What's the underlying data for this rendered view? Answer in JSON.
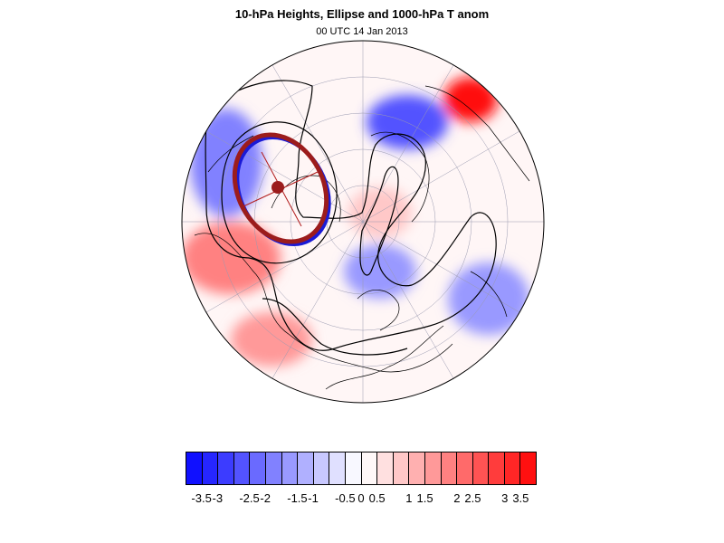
{
  "figure": {
    "title": "10-hPa Heights, Ellipse and 1000-hPa T anom",
    "subtitle": "00 UTC 14 Jan 2013"
  },
  "map": {
    "projection": "polar-stereographic-north",
    "ocean_color": "#ffffff",
    "coastline_color": "#000000",
    "contour_color": "#000000",
    "ellipse_color": "#9c1c1c",
    "ellipse_edge_highlight": "#1a1ad6",
    "ellipse_axis_color": "#b11d1d",
    "anomaly_patches": [
      {
        "name": "north-atlantic-warm",
        "value": 2.0
      },
      {
        "name": "east-asia-warm",
        "value": 1.5
      },
      {
        "name": "north-pacific-warm",
        "value": 3.5
      },
      {
        "name": "arctic-basin-warm",
        "value": 0.8
      },
      {
        "name": "siberia-cold",
        "value": -2.0
      },
      {
        "name": "canada-cold",
        "value": -2.5
      },
      {
        "name": "north-america-cold",
        "value": -1.5
      },
      {
        "name": "central-asia-cold",
        "value": -1.5
      }
    ]
  },
  "colorbar": {
    "colors": [
      "#1010ff",
      "#2626ff",
      "#3c3cff",
      "#5353ff",
      "#6a6aff",
      "#8181ff",
      "#9999ff",
      "#b0b0ff",
      "#c8c8ff",
      "#e0e0ff",
      "#f8f8ff",
      "#fff8f8",
      "#ffe0e0",
      "#ffc8c8",
      "#ffb0b0",
      "#ff9999",
      "#ff8181",
      "#ff6a6a",
      "#ff5353",
      "#ff3c3c",
      "#ff2626",
      "#ff1010"
    ],
    "tick_labels": [
      "-3.5",
      "-3",
      "-2.5",
      "-2",
      "-1.5",
      "-1",
      "-0.5",
      "0",
      "0.5",
      "1",
      "1.5",
      "2",
      "2.5",
      "3",
      "3.5"
    ],
    "tick_values": [
      -3.5,
      -3,
      -2.5,
      -2,
      -1.5,
      -1,
      -0.5,
      0,
      0.5,
      1,
      1.5,
      2,
      2.5,
      3,
      3.5
    ],
    "range": [
      -3.75,
      3.75
    ]
  }
}
